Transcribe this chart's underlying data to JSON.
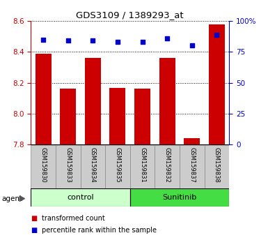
{
  "title": "GDS3109 / 1389293_at",
  "samples": [
    "GSM159830",
    "GSM159833",
    "GSM159834",
    "GSM159835",
    "GSM159831",
    "GSM159832",
    "GSM159837",
    "GSM159838"
  ],
  "bar_values": [
    8.39,
    8.16,
    8.36,
    8.165,
    8.16,
    8.36,
    7.84,
    8.58
  ],
  "percentile_values": [
    85,
    84,
    84,
    83,
    83,
    86,
    80,
    89
  ],
  "ylim_left": [
    7.8,
    8.6
  ],
  "ylim_right": [
    0,
    100
  ],
  "yticks_left": [
    7.8,
    8.0,
    8.2,
    8.4,
    8.6
  ],
  "yticks_right": [
    0,
    25,
    50,
    75,
    100
  ],
  "ytick_labels_right": [
    "0",
    "25",
    "50",
    "75",
    "100%"
  ],
  "bar_color": "#cc0000",
  "dot_color": "#0000cc",
  "group_labels": [
    "control",
    "Sunitinib"
  ],
  "group_ranges": [
    [
      0,
      4
    ],
    [
      4,
      8
    ]
  ],
  "group_color_control": "#ccffcc",
  "group_color_sunitinib": "#44dd44",
  "left_axis_color": "#cc0000",
  "right_axis_color": "#0000cc",
  "bar_width": 0.65,
  "legend_items": [
    "transformed count",
    "percentile rank within the sample"
  ],
  "legend_colors": [
    "#cc0000",
    "#0000cc"
  ],
  "label_box_color": "#cccccc",
  "label_box_edge": "#888888"
}
